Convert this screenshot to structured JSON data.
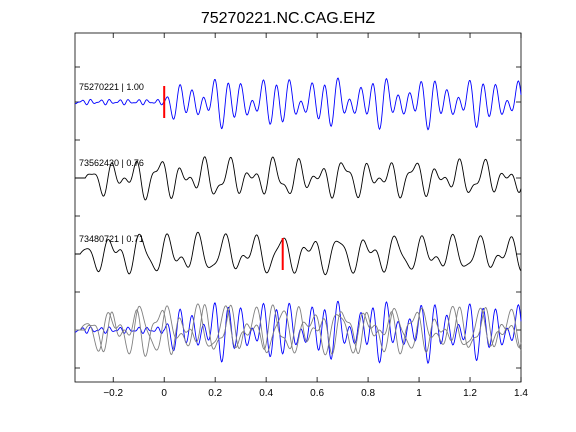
{
  "chart_data": {
    "type": "line",
    "title": "75270221.NC.CAG.EHZ",
    "xlabel": "",
    "ylabel": "",
    "xlim": [
      -0.35,
      1.4
    ],
    "x_ticks": [
      -0.2,
      0,
      0.2,
      0.4,
      0.6,
      0.8,
      1,
      1.2,
      1.4
    ],
    "x_tick_labels": [
      "−0.2",
      "0",
      "0.2",
      "0.4",
      "0.6",
      "0.8",
      "1",
      "1.2",
      "1.4"
    ],
    "grid": false,
    "colors": {
      "reference": "#0000ff",
      "match": "#000000",
      "overlay_match": "#808080",
      "pick": "#ff0000"
    },
    "series": [
      {
        "label": "75270221 | 1.00",
        "event_id": "75270221",
        "correlation": 1.0,
        "color": "#0000ff",
        "onset": 0.0,
        "pick_time": 0.0,
        "noise_level": 0.12,
        "amplitude": 1.0,
        "components": [
          [
            21,
            1.0,
            0.0
          ],
          [
            16,
            0.55,
            1.3
          ],
          [
            10,
            0.4,
            2.4
          ]
        ],
        "decay": 0.05
      },
      {
        "label": "73562430 | 0.76",
        "event_id": "73562430",
        "correlation": 0.76,
        "color": "#000000",
        "onset": -0.31,
        "pick_time": null,
        "noise_level": 0.0,
        "amplitude": 0.95,
        "components": [
          [
            11,
            0.9,
            0.4
          ],
          [
            19,
            0.55,
            2.1
          ],
          [
            7,
            0.35,
            1.0
          ]
        ],
        "decay": 0.1
      },
      {
        "label": "73480721 | 0.71",
        "event_id": "73480721",
        "correlation": 0.71,
        "color": "#000000",
        "onset": -0.33,
        "pick_time": 0.465,
        "noise_level": 0.0,
        "amplitude": 1.0,
        "components": [
          [
            9,
            1.0,
            0.7
          ],
          [
            17,
            0.45,
            2.8
          ],
          [
            13,
            0.3,
            0.3
          ]
        ],
        "decay": 0.1
      }
    ]
  }
}
